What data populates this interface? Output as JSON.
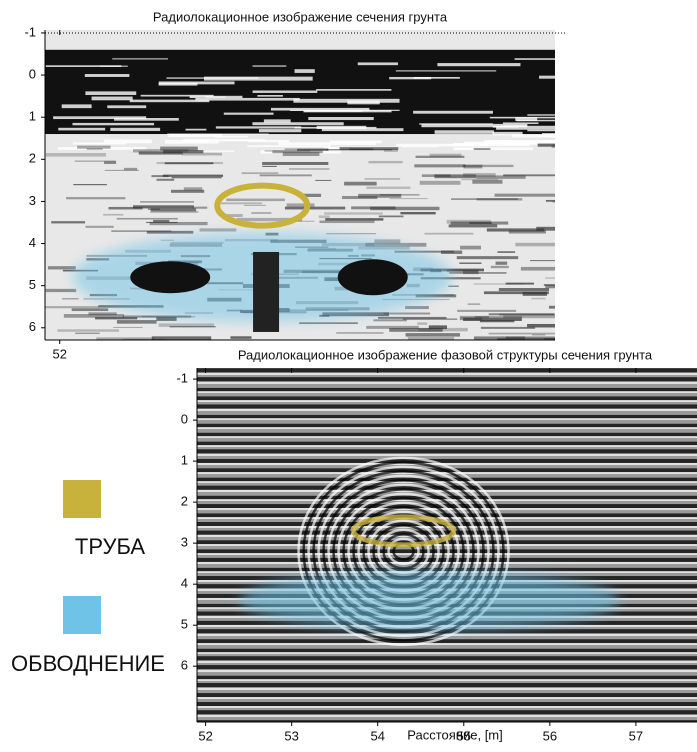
{
  "chart_data": [
    {
      "type": "image",
      "title": "Радиолокационное изображение сечения грунта",
      "xlim": [
        51.84,
        57.38
      ],
      "xticks": [
        52
      ],
      "ylim": [
        -1.07,
        6.29
      ],
      "yticks": [
        -1,
        0,
        1,
        2,
        3,
        4,
        5,
        6
      ]
    },
    {
      "type": "image",
      "title": "Радиолокационное изображение фазовой структуры сечения грунта",
      "xlabel": "Расстояние, [m]",
      "xlim": [
        51.9,
        57.71
      ],
      "xticks": [
        52,
        53,
        54,
        55,
        56,
        57
      ],
      "ylim": [
        -1.27,
        7.36
      ],
      "yticks": [
        -1,
        0,
        1,
        2,
        3,
        4,
        5,
        6
      ]
    }
  ],
  "legend": [
    {
      "name": "ТРУБА",
      "color": "#c8b23c"
    },
    {
      "name": "ОБВОДНЕНИЕ",
      "color": "#6ec3e6"
    }
  ]
}
